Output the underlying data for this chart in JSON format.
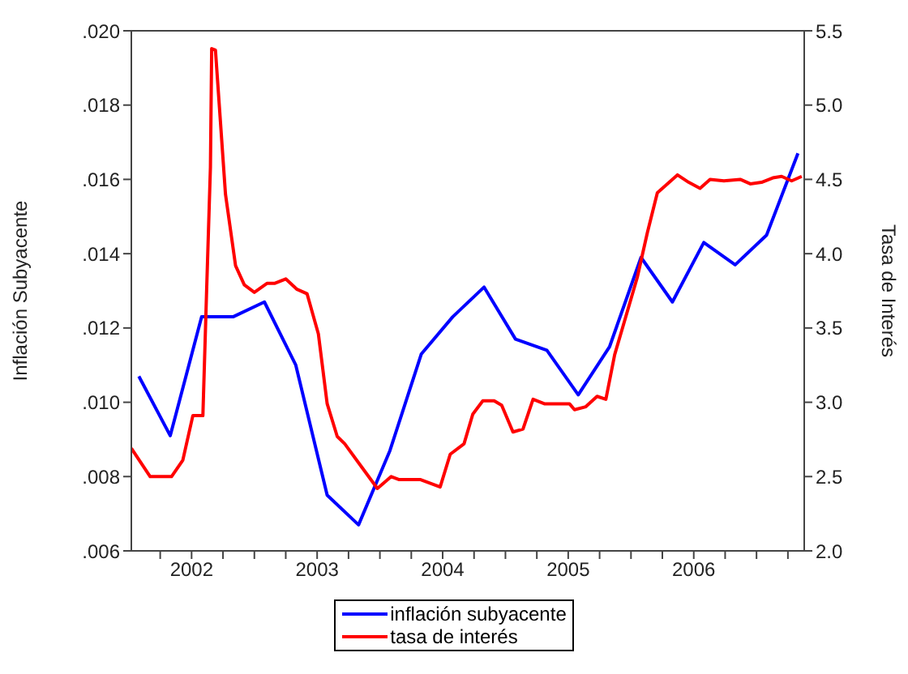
{
  "chart_data": {
    "type": "line",
    "xlim": [
      2002.02,
      2007.38
    ],
    "xticks": [
      {
        "value": 2002.25,
        "label": null
      },
      {
        "value": 2002.5,
        "label": "2002"
      },
      {
        "value": 2002.75,
        "label": null
      },
      {
        "value": 2003.0,
        "label": null
      },
      {
        "value": 2003.25,
        "label": null
      },
      {
        "value": 2003.5,
        "label": "2003"
      },
      {
        "value": 2003.75,
        "label": null
      },
      {
        "value": 2004.0,
        "label": null
      },
      {
        "value": 2004.25,
        "label": null
      },
      {
        "value": 2004.5,
        "label": "2004"
      },
      {
        "value": 2004.75,
        "label": null
      },
      {
        "value": 2005.0,
        "label": null
      },
      {
        "value": 2005.25,
        "label": null
      },
      {
        "value": 2005.5,
        "label": "2005"
      },
      {
        "value": 2005.75,
        "label": null
      },
      {
        "value": 2006.0,
        "label": null
      },
      {
        "value": 2006.25,
        "label": null
      },
      {
        "value": 2006.5,
        "label": "2006"
      },
      {
        "value": 2006.75,
        "label": null
      },
      {
        "value": 2007.0,
        "label": null
      },
      {
        "value": 2007.25,
        "label": null
      }
    ],
    "ylim": [
      0.006,
      0.02
    ],
    "yticks": [
      {
        "value": 0.006,
        "label": ".006"
      },
      {
        "value": 0.008,
        "label": ".008"
      },
      {
        "value": 0.01,
        "label": ".010"
      },
      {
        "value": 0.012,
        "label": ".012"
      },
      {
        "value": 0.014,
        "label": ".014"
      },
      {
        "value": 0.016,
        "label": ".016"
      },
      {
        "value": 0.018,
        "label": ".018"
      },
      {
        "value": 0.02,
        "label": ".020"
      }
    ],
    "y2lim": [
      2.0,
      5.5
    ],
    "y2ticks": [
      {
        "value": 2.0,
        "label": "2.0"
      },
      2.5,
      {
        "value": 3.0,
        "label": "3.0"
      },
      3.5,
      {
        "value": 4.0,
        "label": "4.0"
      },
      4.5,
      {
        "value": 5.0,
        "label": "5.0"
      },
      5.5
    ],
    "ylabel": "Inflación Subyacente",
    "y2label": "Tasa de Interés",
    "grid": false,
    "legend": "bottom",
    "series": [
      {
        "name": "inflación subyacente",
        "color": "#0000ff",
        "x": [
          2002.08,
          2002.33,
          2002.58,
          2002.83,
          2003.08,
          2003.33,
          2003.58,
          2003.83,
          2004.08,
          2004.33,
          2004.58,
          2004.83,
          2005.08,
          2005.33,
          2005.58,
          2005.83,
          2006.08,
          2006.33,
          2006.58,
          2006.83,
          2007.08,
          2007.33
        ],
        "values": [
          0.0107,
          0.0091,
          0.0123,
          0.0123,
          0.0127,
          0.011,
          0.0075,
          0.0067,
          0.0087,
          0.0113,
          0.0123,
          0.0131,
          0.0117,
          0.0114,
          0.0102,
          0.0115,
          0.0139,
          0.0127,
          0.0143,
          0.0137,
          0.0145,
          0.0167
        ]
      },
      {
        "name": "tasa de interés",
        "color": "#ff0000",
        "axis": "y2",
        "x": [
          2002.02,
          2002.17,
          2002.34,
          2002.43,
          2002.51,
          2002.59,
          2002.62,
          2002.65,
          2002.66,
          2002.69,
          2002.77,
          2002.85,
          2002.92,
          2003.0,
          2003.1,
          2003.16,
          2003.25,
          2003.34,
          2003.42,
          2003.51,
          2003.58,
          2003.66,
          2003.72,
          2003.85,
          2003.98,
          2004.09,
          2004.15,
          2004.32,
          2004.48,
          2004.56,
          2004.67,
          2004.74,
          2004.82,
          2004.91,
          2004.97,
          2005.06,
          2005.14,
          2005.22,
          2005.31,
          2005.51,
          2005.55,
          2005.64,
          2005.73,
          2005.8,
          2005.87,
          2006.05,
          2006.13,
          2006.21,
          2006.29,
          2006.37,
          2006.46,
          2006.55,
          2006.63,
          2006.74,
          2006.87,
          2006.95,
          2007.04,
          2007.13,
          2007.2,
          2007.28,
          2007.36
        ],
        "values": [
          2.69,
          2.5,
          2.5,
          2.61,
          2.91,
          2.91,
          3.76,
          4.58,
          5.38,
          5.37,
          4.4,
          3.92,
          3.79,
          3.74,
          3.8,
          3.8,
          3.83,
          3.76,
          3.73,
          3.46,
          2.99,
          2.77,
          2.72,
          2.57,
          2.42,
          2.5,
          2.48,
          2.48,
          2.43,
          2.65,
          2.72,
          2.92,
          3.01,
          3.01,
          2.98,
          2.8,
          2.82,
          3.02,
          2.99,
          2.99,
          2.95,
          2.97,
          3.04,
          3.02,
          3.32,
          3.84,
          4.14,
          4.41,
          4.47,
          4.53,
          4.48,
          4.44,
          4.5,
          4.49,
          4.5,
          4.47,
          4.48,
          4.51,
          4.52,
          4.49,
          4.52
        ]
      }
    ]
  }
}
